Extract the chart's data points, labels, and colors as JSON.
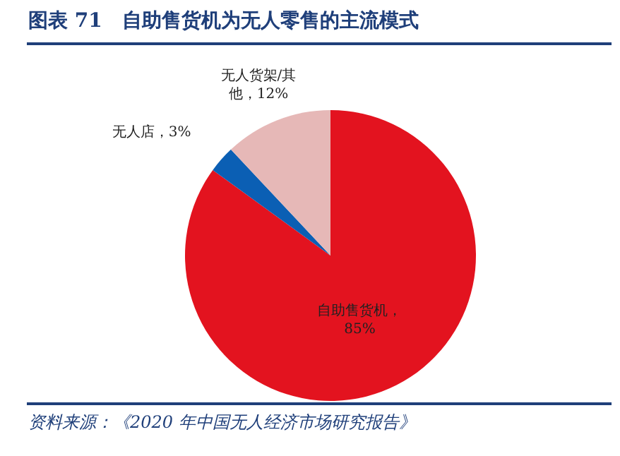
{
  "chart_data": {
    "type": "pie",
    "title": "图表 71　自助售货机为无人零售的主流模式",
    "categories": [
      "自助售货机",
      "无人店",
      "无人货架/其他"
    ],
    "values": [
      85,
      3,
      12
    ],
    "value_labels": [
      "，85%",
      "，3%",
      "，12%"
    ],
    "colors": [
      "#e3131f",
      "#0b5fb4",
      "#e6b8b7"
    ],
    "legend": false,
    "annotations": [
      "资料来源：《2020 年中国无人经济市场研究报告》"
    ]
  }
}
